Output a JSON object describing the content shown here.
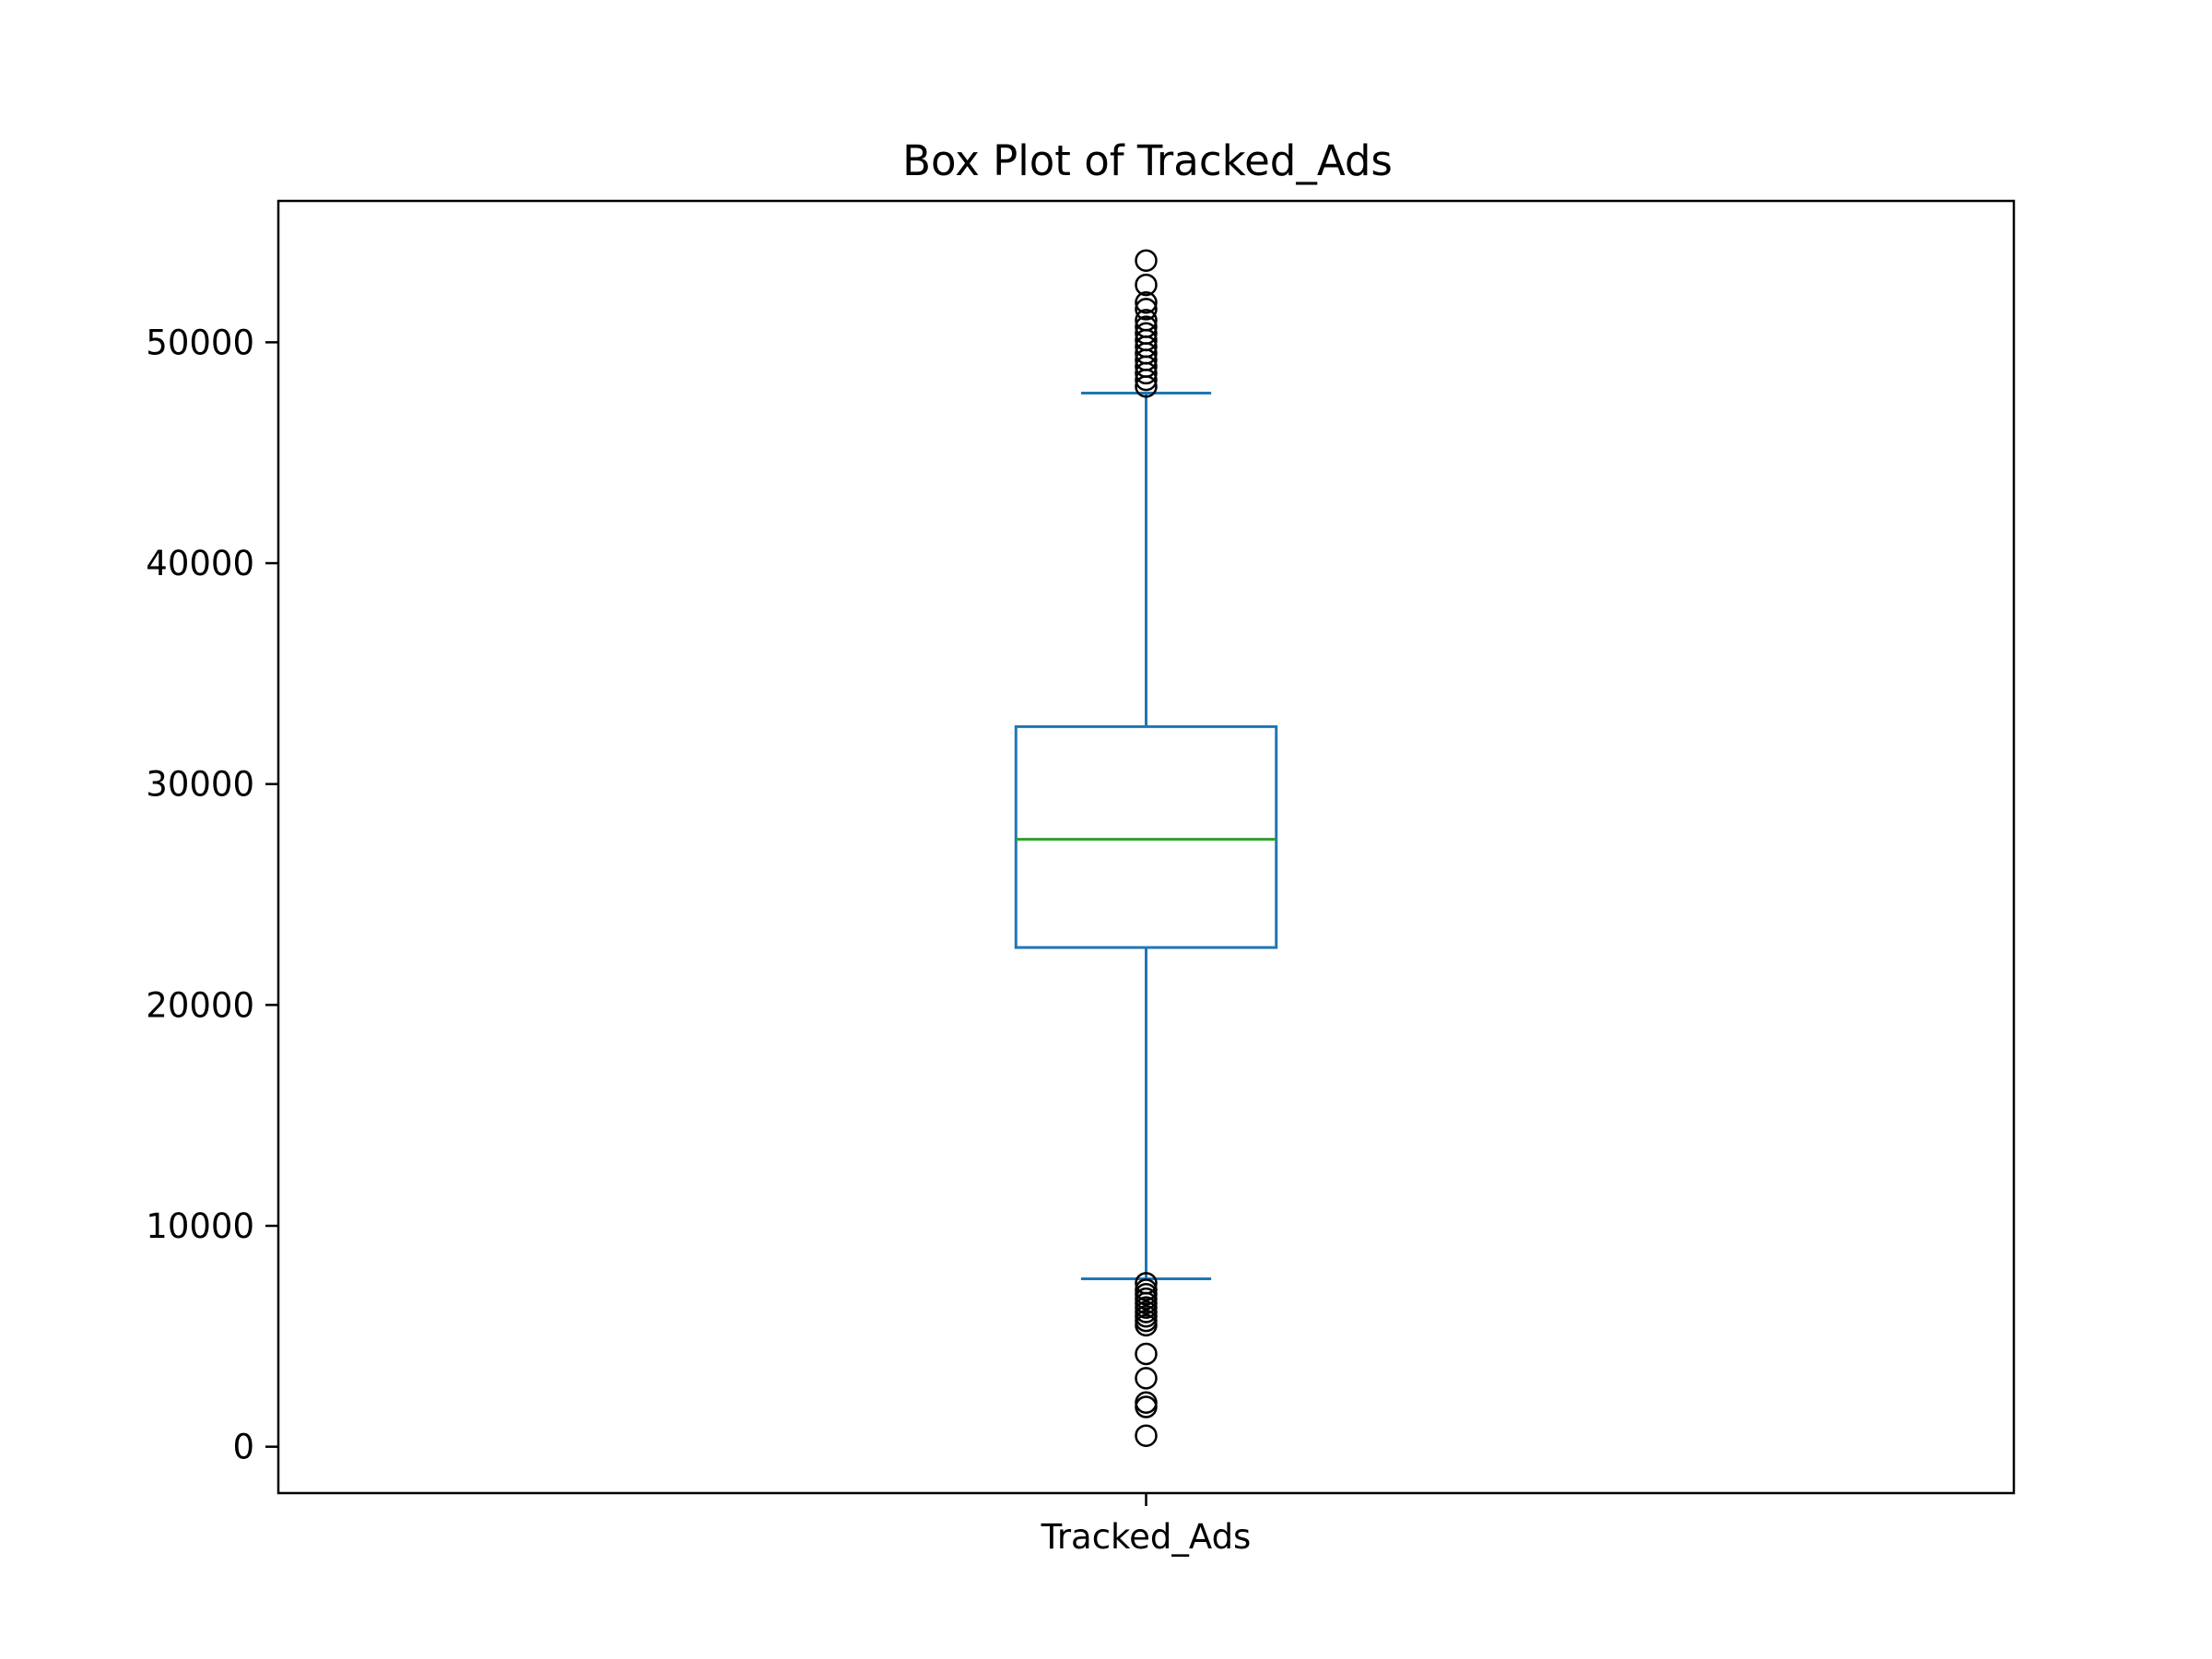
{
  "chart_data": {
    "type": "box",
    "title": "Box Plot of Tracked_Ads",
    "xlabel": "",
    "ylabel": "",
    "categories": [
      "Tracked_Ads"
    ],
    "ylim": [
      -2100,
      56400
    ],
    "yticks": [
      0,
      10000,
      20000,
      30000,
      40000,
      50000
    ],
    "ytick_labels": [
      "0",
      "10000",
      "20000",
      "30000",
      "40000",
      "50000"
    ],
    "grid": false,
    "boxes": [
      {
        "name": "Tracked_Ads",
        "whisker_low": 7600,
        "q1": 22600,
        "median": 27500,
        "q3": 32600,
        "whisker_high": 47700,
        "outliers_high": [
          48000,
          48300,
          48600,
          48900,
          49200,
          49500,
          49800,
          50100,
          50400,
          50700,
          51000,
          51500,
          51800,
          52600,
          53700
        ],
        "outliers_low": [
          7400,
          7100,
          6900,
          6700,
          6500,
          6300,
          6100,
          5900,
          5700,
          5500,
          4200,
          3100,
          2000,
          1800,
          500
        ]
      }
    ],
    "colors": {
      "box": "#1f77b4",
      "median": "#2ca02c",
      "outlier": "#000000",
      "axes": "#000000"
    }
  }
}
